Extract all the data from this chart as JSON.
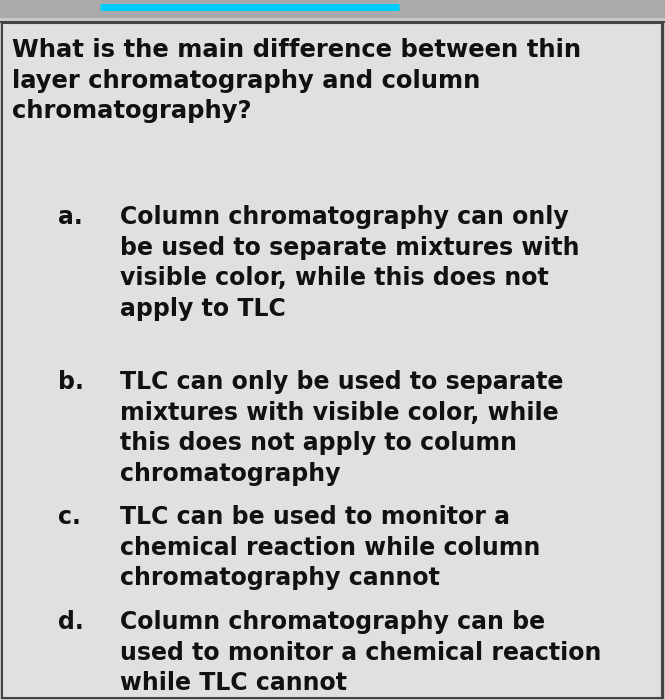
{
  "background_color": "#c8c8c8",
  "inner_background_color": "#e0e0e0",
  "question": "What is the main difference between thin\nlayer chromatography and column\nchromatography?",
  "options": [
    {
      "label": "a.",
      "text": "Column chromatography can only\nbe used to separate mixtures with\nvisible color, while this does not\napply to TLC"
    },
    {
      "label": "b.",
      "text": "TLC can only be used to separate\nmixtures with visible color, while\nthis does not apply to column\nchromatography"
    },
    {
      "label": "c.",
      "text": "TLC can be used to monitor a\nchemical reaction while column\nchromatography cannot"
    },
    {
      "label": "d.",
      "text": "Column chromatography can be\nused to monitor a chemical reaction\nwhile TLC cannot"
    }
  ],
  "question_fontsize": 17.5,
  "option_fontsize": 17.0,
  "text_color": "#111111",
  "border_color": "#444444",
  "top_line_color": "#00ccff",
  "top_bar_color": "#888888",
  "fig_width": 6.65,
  "fig_height": 7.0,
  "dpi": 100
}
